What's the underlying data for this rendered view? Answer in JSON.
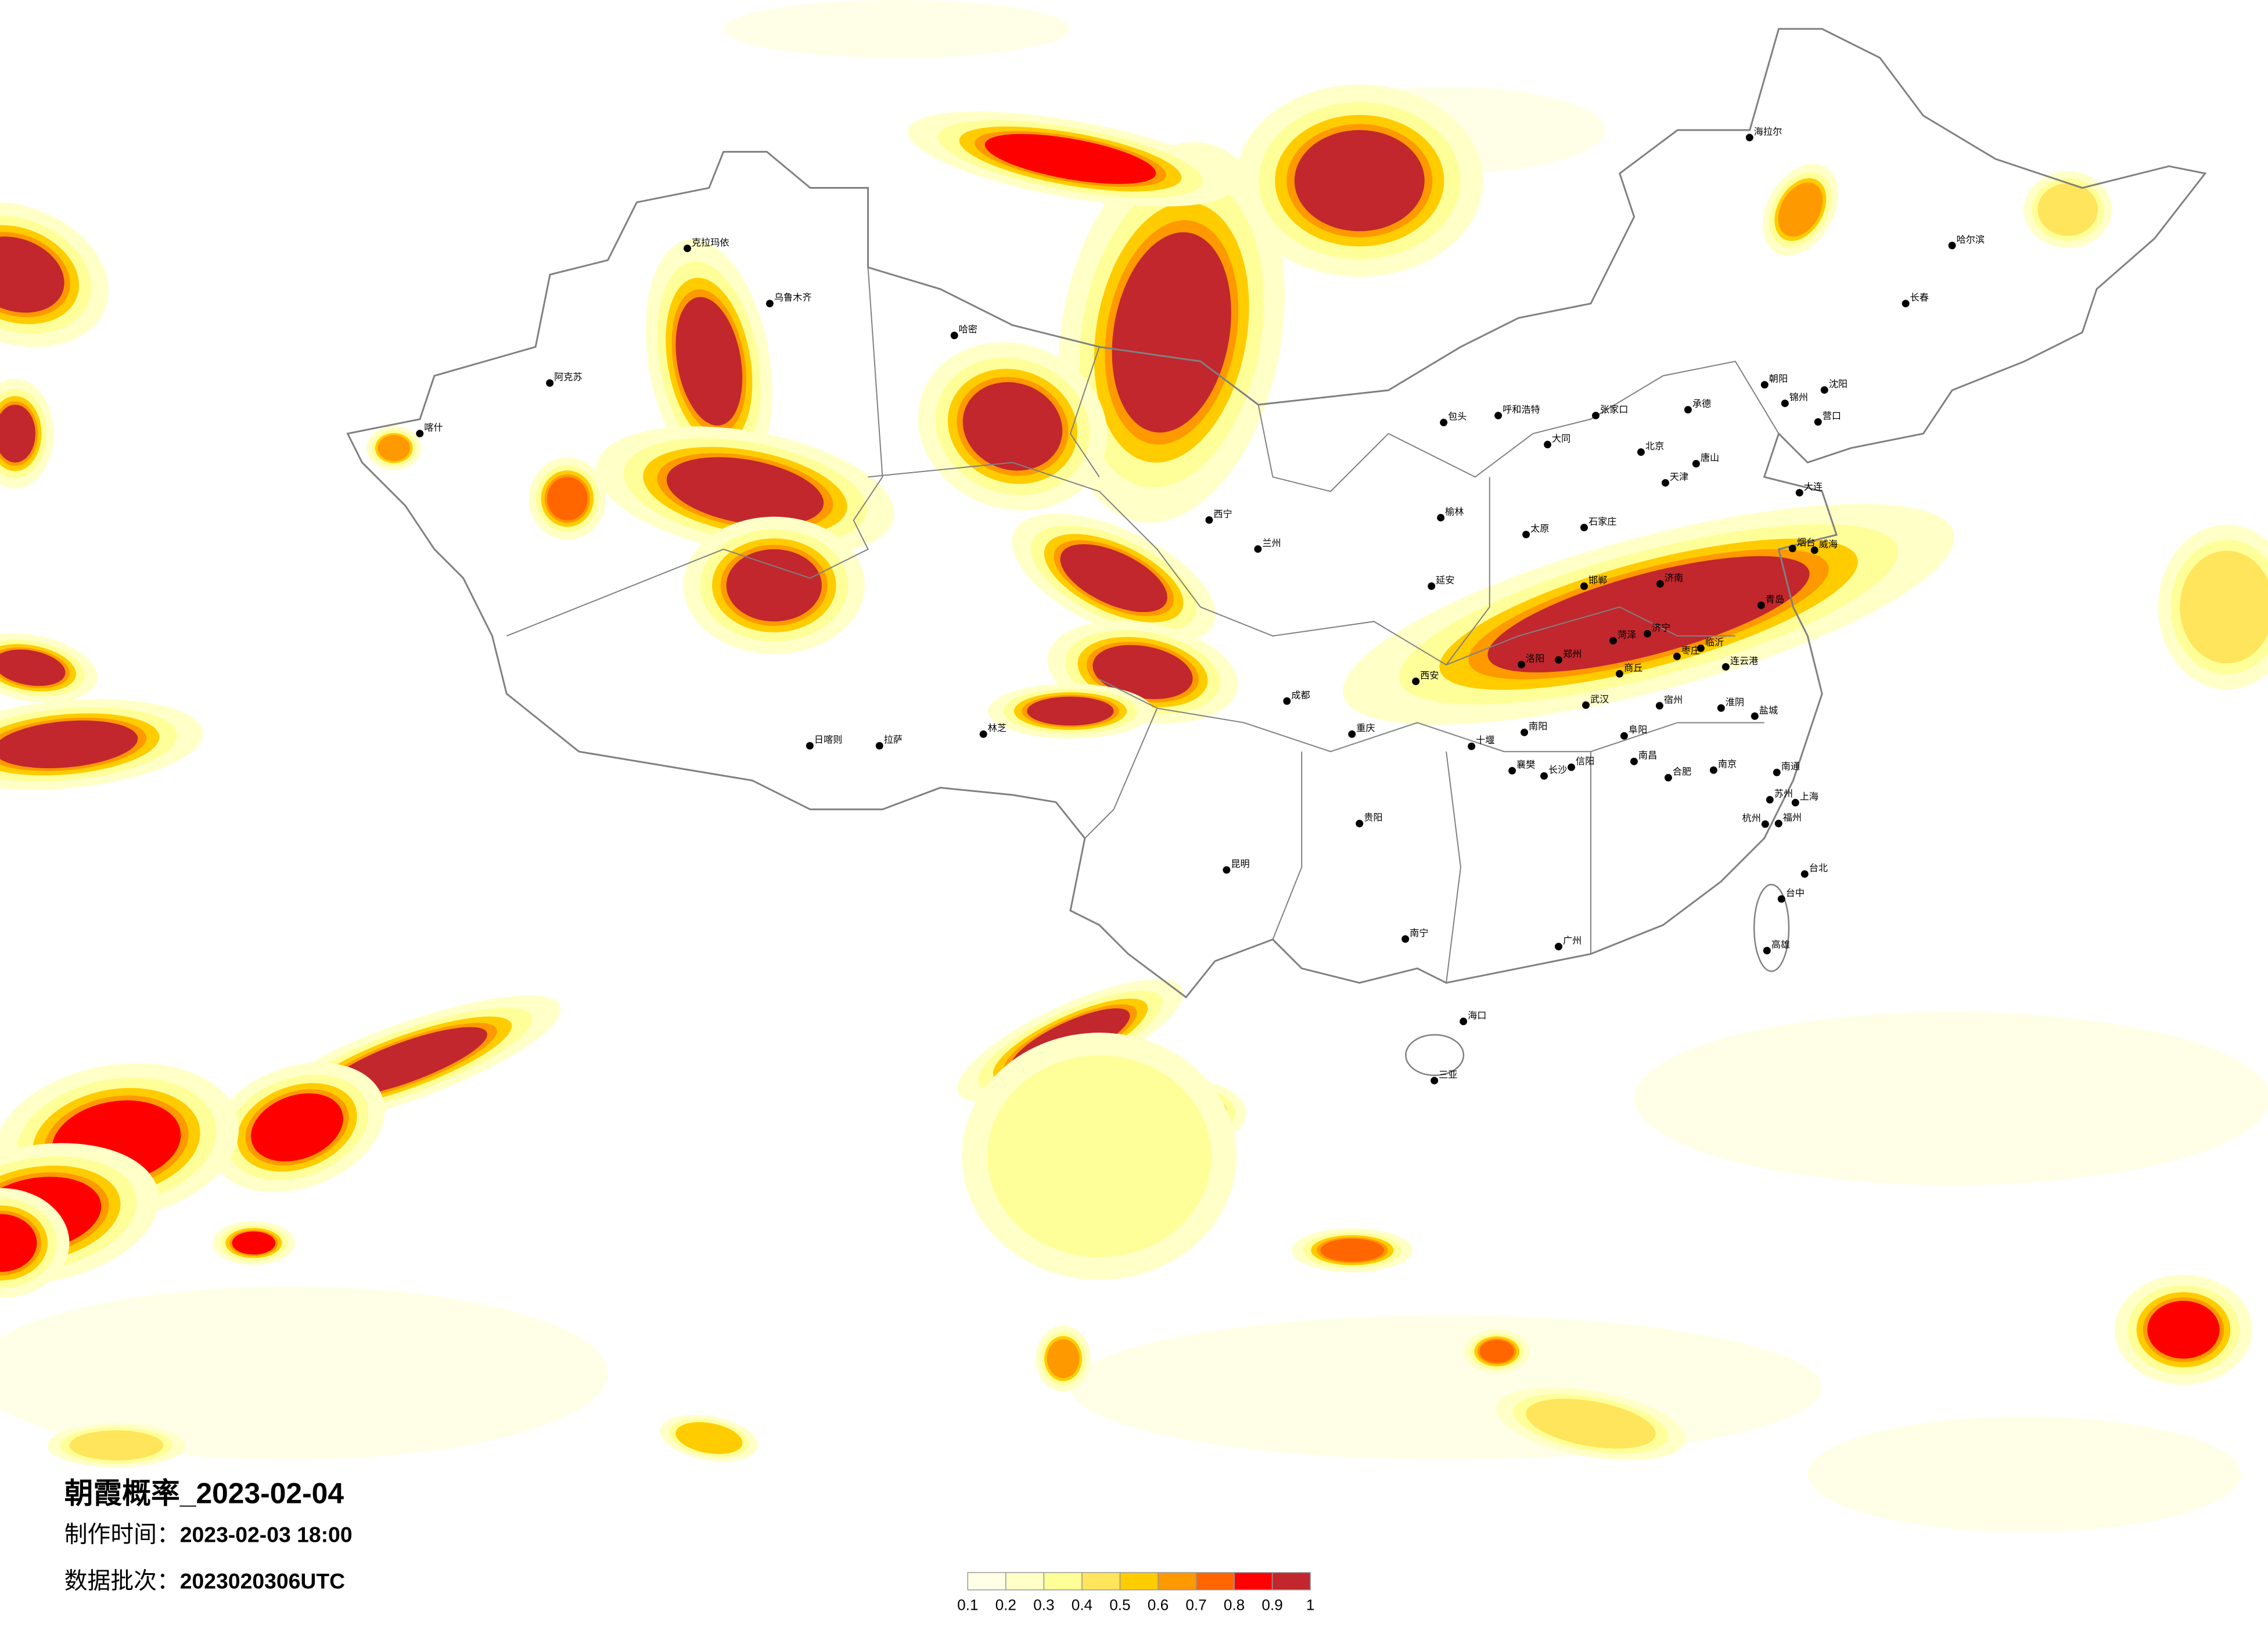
{
  "title": "朝霞概率_2023-02-04",
  "production_time": {
    "label": "制作时间：",
    "value": "2023-02-03 18:00"
  },
  "data_batch": {
    "label": "数据批次：",
    "value": "2023020306UTC"
  },
  "legend": {
    "ticks": [
      "0.1",
      "0.2",
      "0.3",
      "0.4",
      "0.5",
      "0.6",
      "0.7",
      "0.8",
      "0.9",
      "1"
    ],
    "colors": [
      "#ffffe8",
      "#ffffc8",
      "#ffff99",
      "#ffe55c",
      "#ffcc00",
      "#ff9900",
      "#ff6600",
      "#ff0000",
      "#c1272d"
    ]
  },
  "colors": {
    "border": "#808080",
    "city_dot": "#000000",
    "background": "#ffffff"
  },
  "cities": [
    "北京",
    "天津",
    "石家庄",
    "太原",
    "济南",
    "郑州",
    "西安",
    "青岛",
    "连云港",
    "南京",
    "上海",
    "合肥",
    "大连",
    "唐山",
    "呼和浩特",
    "包头",
    "张家口",
    "大同",
    "承德",
    "洛阳",
    "南阳",
    "信阳",
    "阜阳",
    "宿州",
    "淮阴",
    "盐城",
    "临沂",
    "枣庄",
    "商丘",
    "菏泽",
    "济宁",
    "邯郸",
    "延安",
    "榆林",
    "十堰",
    "襄樊",
    "苏州",
    "南通",
    "烟台",
    "威海",
    "营口",
    "锦州",
    "朝阳",
    "乌鲁木齐",
    "哈尔滨",
    "长春",
    "沈阳",
    "广州",
    "海口",
    "三亚",
    "昆明",
    "成都",
    "重庆",
    "拉萨",
    "西宁",
    "兰州",
    "长沙",
    "武汉",
    "南昌",
    "福州",
    "台北",
    "台中",
    "高雄",
    "南宁",
    "贵阳",
    "杭州",
    "海拉尔",
    "喀什",
    "克拉玛依",
    "哈密",
    "阿克苏",
    "日喀则",
    "林芝"
  ]
}
